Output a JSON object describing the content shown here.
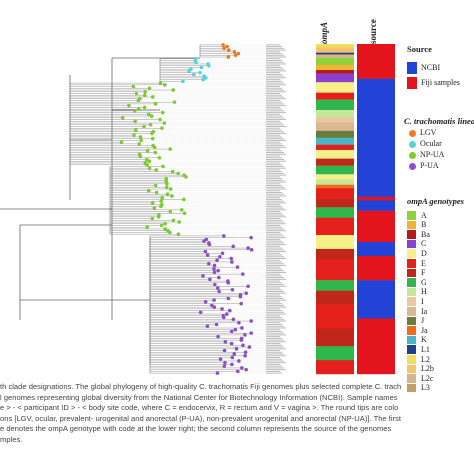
{
  "columns": {
    "ompa": "ompA",
    "source": "source"
  },
  "legend_source": {
    "title": "Source",
    "items": [
      {
        "label": "NCBI",
        "color": "#2343d6"
      },
      {
        "label": "Fiji samples",
        "color": "#e3141b"
      }
    ]
  },
  "legend_lineage": {
    "title": "C. trachomatis lineages",
    "items": [
      {
        "label": "LGV",
        "color": "#f07a22"
      },
      {
        "label": "Ocular",
        "color": "#57d3dc"
      },
      {
        "label": "NP-UA",
        "color": "#7ccc2e"
      },
      {
        "label": "P-UA",
        "color": "#8c4fc9"
      }
    ]
  },
  "legend_ompa": {
    "title": "ompA genotypes",
    "items": [
      {
        "label": "A",
        "color": "#8fd23b"
      },
      {
        "label": "B",
        "color": "#f2b233"
      },
      {
        "label": "Ba",
        "color": "#b51a1a"
      },
      {
        "label": "C",
        "color": "#8a3fd0"
      },
      {
        "label": "D",
        "color": "#f7f08a"
      },
      {
        "label": "E",
        "color": "#e3201b"
      },
      {
        "label": "F",
        "color": "#c1261a"
      },
      {
        "label": "G",
        "color": "#2fb64d"
      },
      {
        "label": "H",
        "color": "#c4e89a"
      },
      {
        "label": "I",
        "color": "#e8c9a0"
      },
      {
        "label": "Ia",
        "color": "#d9b892"
      },
      {
        "label": "J",
        "color": "#6b7d3a"
      },
      {
        "label": "Ja",
        "color": "#f26a1e"
      },
      {
        "label": "K",
        "color": "#48b5c9"
      },
      {
        "label": "L1",
        "color": "#1f3f8c"
      },
      {
        "label": "L2",
        "color": "#f0df5e"
      },
      {
        "label": "L2b",
        "color": "#f5c36b"
      },
      {
        "label": "L2c",
        "color": "#d7b48c"
      },
      {
        "label": "L3",
        "color": "#c29c6a"
      }
    ]
  },
  "caption_lines": [
    "th clade designations. The global phylogeny of high-quality C. trachomatis Fiji genomes plus selected complete C. trach",
    "l genomes representing global diversity from the National Center for Biotechnology Information (NCBI). Sample names",
    "e > - < participant ID > - < body site code, where C = endocervix, R = rectum and V = vagina >. The round tips are colo",
    "ons [LGV, ocular, prevalent- urogenital and anorectal (P-UA), non-prevalent urogenital and anorectal (NP-UA)]. The first",
    "e denotes the ompA genotype with code at the lower right; the second column represents the source of the genomes",
    "mples."
  ]
}
